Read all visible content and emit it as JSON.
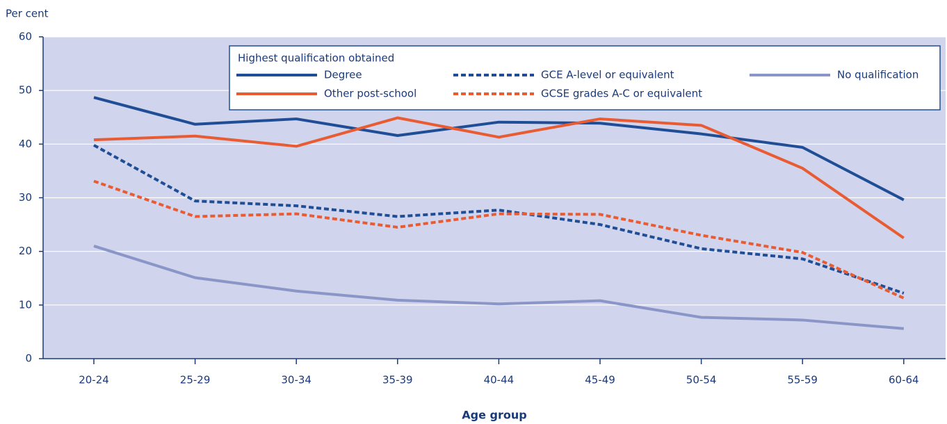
{
  "chart_data": {
    "type": "line",
    "y_label": "Per cent",
    "x_label": "Age group",
    "legend_title": "Highest qualification obtained",
    "categories": [
      "20-24",
      "25-29",
      "30-34",
      "35-39",
      "40-44",
      "45-49",
      "50-54",
      "55-59",
      "60-64"
    ],
    "ylim": [
      0,
      60
    ],
    "yticks": [
      0,
      10,
      20,
      30,
      40,
      50,
      60
    ],
    "grid": true,
    "series": [
      {
        "name": "Degree",
        "color": "#1f4e96",
        "dashed": false,
        "values": [
          48.7,
          43.7,
          44.7,
          41.6,
          44.1,
          43.9,
          41.9,
          39.4,
          29.6
        ]
      },
      {
        "name": "Other post-school",
        "color": "#e95c33",
        "dashed": false,
        "values": [
          40.8,
          41.5,
          39.6,
          44.9,
          41.3,
          44.7,
          43.5,
          35.5,
          22.5
        ]
      },
      {
        "name": "GCE A-level or equivalent",
        "color": "#1f4e96",
        "dashed": true,
        "values": [
          39.8,
          29.4,
          28.5,
          26.5,
          27.7,
          25.0,
          20.5,
          18.6,
          12.2
        ]
      },
      {
        "name": "GCSE grades A-C or equivalent",
        "color": "#e95c33",
        "dashed": true,
        "values": [
          33.1,
          26.5,
          27.0,
          24.5,
          27.0,
          26.9,
          23.0,
          19.8,
          11.3
        ]
      },
      {
        "name": "No qualification",
        "color": "#8b96c8",
        "dashed": false,
        "values": [
          21.0,
          15.1,
          12.6,
          10.9,
          10.2,
          10.8,
          7.7,
          7.2,
          5.6
        ]
      }
    ]
  }
}
